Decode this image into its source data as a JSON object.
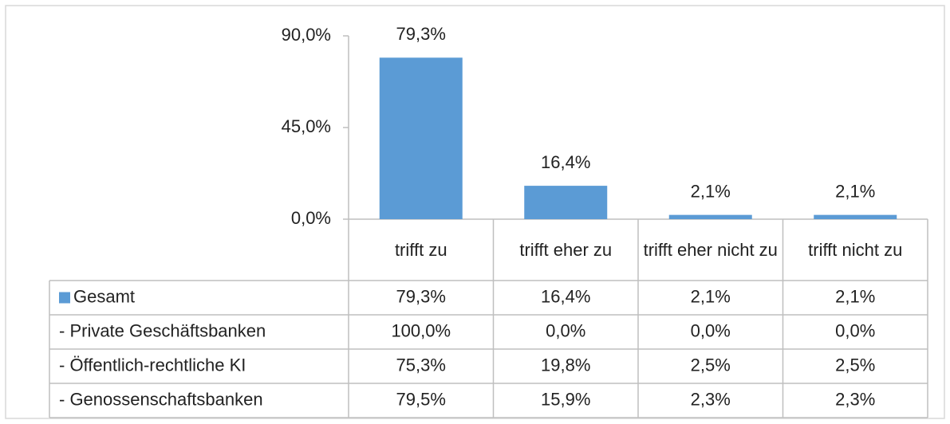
{
  "chart_data": {
    "type": "bar",
    "categories": [
      "trifft zu",
      "trifft eher zu",
      "trifft eher nicht zu",
      "trifft nicht zu"
    ],
    "series": [
      {
        "name": "Gesamt",
        "color": "#5b9bd5",
        "values": [
          79.3,
          16.4,
          2.1,
          2.1
        ],
        "value_labels": [
          "79,3%",
          "16,4%",
          "2,1%",
          "2,1%"
        ]
      }
    ],
    "ylim": [
      0,
      90
    ],
    "yticks": [
      {
        "value": 0,
        "label": "0,0%"
      },
      {
        "value": 45,
        "label": "45,0%"
      },
      {
        "value": 90,
        "label": "90,0%"
      }
    ],
    "data_table": {
      "rows": [
        {
          "name": "- Private Geschäftsbanken",
          "cells": [
            "100,0%",
            "0,0%",
            "0,0%",
            "0,0%"
          ]
        },
        {
          "name": "- Öffentlich-rechtliche KI",
          "cells": [
            "75,3%",
            "19,8%",
            "2,5%",
            "2,5%"
          ]
        },
        {
          "name": "- Genossenschaftsbanken",
          "cells": [
            "79,5%",
            "15,9%",
            "2,3%",
            "2,3%"
          ]
        }
      ]
    }
  }
}
